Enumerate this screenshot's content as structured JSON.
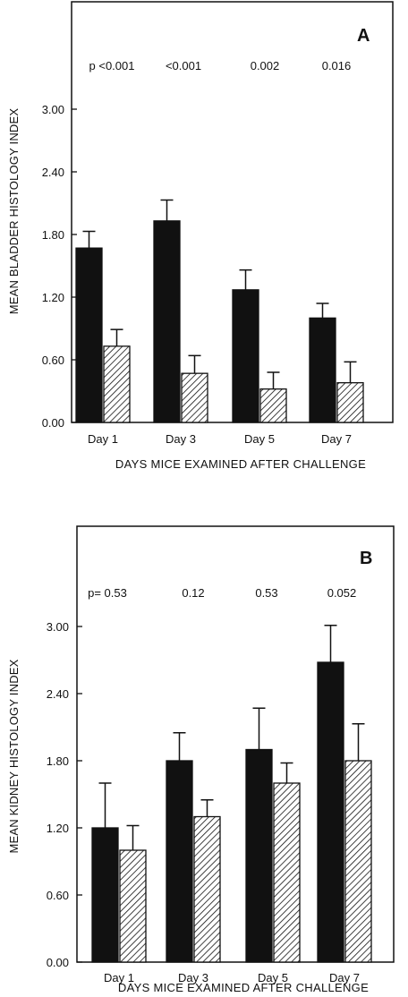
{
  "chart_data": [
    {
      "type": "bar",
      "panel_label": "A",
      "ylabel": "MEAN BLADDER HISTOLOGY INDEX",
      "xlabel": "DAYS MICE EXAMINED AFTER CHALLENGE",
      "categories": [
        "Day 1",
        "Day 3",
        "Day 5",
        "Day 7"
      ],
      "p_values": [
        "p <0.001",
        "<0.001",
        "0.002",
        "0.016"
      ],
      "ylim": [
        0,
        3.0
      ],
      "yticks": [
        "0.00",
        "0.60",
        "1.20",
        "1.80",
        "2.40",
        "3.00"
      ],
      "series": [
        {
          "fill": "solid",
          "values": [
            1.67,
            1.93,
            1.27,
            1.0
          ],
          "errors": [
            0.16,
            0.2,
            0.19,
            0.14
          ]
        },
        {
          "fill": "hatched",
          "values": [
            0.73,
            0.47,
            0.32,
            0.38
          ],
          "errors": [
            0.16,
            0.17,
            0.16,
            0.2
          ]
        }
      ],
      "colors": {
        "solid": "#111111",
        "hatched_line": "#111111",
        "hatched_bg": "#ffffff"
      }
    },
    {
      "type": "bar",
      "panel_label": "B",
      "ylabel": "MEAN KIDNEY HISTOLOGY INDEX",
      "xlabel": "DAYS MICE EXAMINED AFTER CHALLENGE",
      "categories": [
        "Day 1",
        "Day 3",
        "Day 5",
        "Day 7"
      ],
      "p_values": [
        "p= 0.53",
        "0.12",
        "0.53",
        "0.052"
      ],
      "ylim": [
        0,
        3.0
      ],
      "yticks": [
        "0.00",
        "0.60",
        "1.20",
        "1.80",
        "2.40",
        "3.00"
      ],
      "series": [
        {
          "fill": "solid",
          "values": [
            1.2,
            1.8,
            1.9,
            2.68
          ],
          "errors": [
            0.4,
            0.25,
            0.37,
            0.33
          ]
        },
        {
          "fill": "hatched",
          "values": [
            1.0,
            1.3,
            1.6,
            1.8
          ],
          "errors": [
            0.22,
            0.15,
            0.18,
            0.33
          ]
        }
      ],
      "colors": {
        "solid": "#111111",
        "hatched_line": "#111111",
        "hatched_bg": "#ffffff"
      }
    }
  ]
}
